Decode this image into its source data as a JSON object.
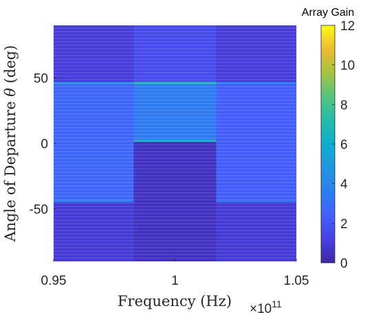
{
  "chart_data": {
    "type": "heatmap",
    "xlabel": "Frequency (Hz)",
    "xlabel_multiplier": "×10",
    "xlabel_multiplier_exponent": "11",
    "ylabel_prefix": "Angle of Departure",
    "ylabel_symbol": "θ",
    "ylabel_suffix": "(deg)",
    "xlim": [
      0.95,
      1.05
    ],
    "ylim": [
      -90,
      90
    ],
    "x_ticks": [
      0.95,
      1.0,
      1.05
    ],
    "x_tick_labels": [
      "0.95",
      "1",
      "1.05"
    ],
    "y_ticks": [
      -50,
      0,
      50
    ],
    "y_tick_labels": [
      "-50",
      "0",
      "50"
    ],
    "colorbar": {
      "title": "Array Gain",
      "range": [
        0,
        12
      ],
      "ticks": [
        0,
        2,
        4,
        6,
        8,
        10,
        12
      ],
      "tick_labels": [
        "0",
        "2",
        "4",
        "6",
        "8",
        "10",
        "12"
      ],
      "colormap": "parula"
    },
    "regions": [
      {
        "x": [
          0.95,
          0.983
        ],
        "y": [
          46,
          90
        ],
        "gain": 1.0
      },
      {
        "x": [
          0.95,
          0.983
        ],
        "y": [
          -44,
          46
        ],
        "gain": 2.6
      },
      {
        "x": [
          0.95,
          0.983
        ],
        "y": [
          -90,
          -44
        ],
        "gain": 0.9
      },
      {
        "x": [
          0.983,
          1.017
        ],
        "y": [
          46,
          90
        ],
        "gain": 1.6
      },
      {
        "x": [
          0.983,
          1.017
        ],
        "y": [
          2,
          46
        ],
        "gain": 3.4
      },
      {
        "x": [
          0.983,
          1.017
        ],
        "y": [
          -90,
          2
        ],
        "gain": 0.5
      },
      {
        "x": [
          1.017,
          1.05
        ],
        "y": [
          46,
          90
        ],
        "gain": 1.0
      },
      {
        "x": [
          1.017,
          1.05
        ],
        "y": [
          -44,
          46
        ],
        "gain": 2.3
      },
      {
        "x": [
          1.017,
          1.05
        ],
        "y": [
          -90,
          -44
        ],
        "gain": 0.9
      }
    ],
    "peak_lines": [
      {
        "x": [
          0.95,
          0.983
        ],
        "y": 46,
        "gain": 4.5
      },
      {
        "x": [
          0.95,
          0.983
        ],
        "y": -44,
        "gain": 4.0
      },
      {
        "x": [
          0.983,
          1.017
        ],
        "y": 46,
        "gain": 7.0
      },
      {
        "x": [
          0.983,
          1.017
        ],
        "y": 2,
        "gain": 6.3
      },
      {
        "x": [
          1.017,
          1.05
        ],
        "y": 46,
        "gain": 3.3
      },
      {
        "x": [
          1.017,
          1.05
        ],
        "y": -44,
        "gain": 3.3
      }
    ]
  }
}
